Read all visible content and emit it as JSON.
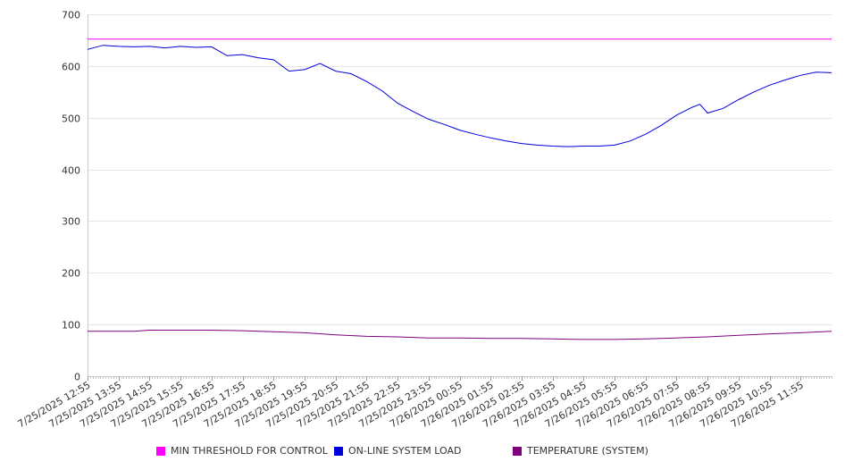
{
  "chart_data": {
    "type": "line",
    "title": "",
    "xlabel": "",
    "ylabel": "",
    "ylim": [
      0,
      700
    ],
    "yticks": [
      0,
      100,
      200,
      300,
      400,
      500,
      600,
      700
    ],
    "grid": "horizontal",
    "legend_position": "bottom",
    "x_tick_labels": [
      "7/25/2025 12:55",
      "7/25/2025 13:55",
      "7/25/2025 14:55",
      "7/25/2025 15:55",
      "7/25/2025 16:55",
      "7/25/2025 17:55",
      "7/25/2025 18:55",
      "7/25/2025 19:55",
      "7/25/2025 20:55",
      "7/25/2025 21:55",
      "7/25/2025 22:55",
      "7/25/2025 23:55",
      "7/26/2025 00:55",
      "7/26/2025 01:55",
      "7/26/2025 02:55",
      "7/26/2025 03:55",
      "7/26/2025 04:55",
      "7/26/2025 05:55",
      "7/26/2025 06:55",
      "7/26/2025 07:55",
      "7/26/2025 08:55",
      "7/26/2025 09:55",
      "7/26/2025 10:55",
      "7/26/2025 11:55"
    ],
    "series": [
      {
        "name": "MIN THRESHOLD FOR CONTROL",
        "color": "#ff00ff",
        "points": [
          [
            "7/25/2025 12:55",
            652
          ],
          [
            "7/26/2025 12:55",
            652
          ]
        ]
      },
      {
        "name": "ON-LINE SYSTEM LOAD",
        "color": "#0000dd",
        "points": [
          [
            "7/25/2025 12:55",
            632
          ],
          [
            "7/25/2025 13:25",
            640
          ],
          [
            "7/25/2025 13:55",
            638
          ],
          [
            "7/25/2025 14:25",
            637
          ],
          [
            "7/25/2025 14:55",
            638
          ],
          [
            "7/25/2025 15:25",
            635
          ],
          [
            "7/25/2025 15:55",
            638
          ],
          [
            "7/25/2025 16:25",
            636
          ],
          [
            "7/25/2025 16:55",
            637
          ],
          [
            "7/25/2025 17:25",
            620
          ],
          [
            "7/25/2025 17:55",
            622
          ],
          [
            "7/25/2025 18:25",
            616
          ],
          [
            "7/25/2025 18:55",
            612
          ],
          [
            "7/25/2025 19:25",
            590
          ],
          [
            "7/25/2025 19:55",
            593
          ],
          [
            "7/25/2025 20:25",
            605
          ],
          [
            "7/25/2025 20:55",
            590
          ],
          [
            "7/25/2025 21:25",
            585
          ],
          [
            "7/25/2025 21:55",
            570
          ],
          [
            "7/25/2025 22:25",
            552
          ],
          [
            "7/25/2025 22:55",
            528
          ],
          [
            "7/25/2025 23:25",
            512
          ],
          [
            "7/25/2025 23:55",
            497
          ],
          [
            "7/26/2025 00:25",
            487
          ],
          [
            "7/26/2025 00:55",
            476
          ],
          [
            "7/26/2025 01:25",
            468
          ],
          [
            "7/26/2025 01:55",
            461
          ],
          [
            "7/26/2025 02:25",
            455
          ],
          [
            "7/26/2025 02:55",
            450
          ],
          [
            "7/26/2025 03:25",
            447
          ],
          [
            "7/26/2025 03:55",
            445
          ],
          [
            "7/26/2025 04:25",
            444
          ],
          [
            "7/26/2025 04:55",
            445
          ],
          [
            "7/26/2025 05:25",
            445
          ],
          [
            "7/26/2025 05:55",
            447
          ],
          [
            "7/26/2025 06:25",
            455
          ],
          [
            "7/26/2025 06:55",
            468
          ],
          [
            "7/26/2025 07:25",
            485
          ],
          [
            "7/26/2025 07:55",
            505
          ],
          [
            "7/26/2025 08:25",
            520
          ],
          [
            "7/26/2025 08:40",
            526
          ],
          [
            "7/26/2025 08:55",
            509
          ],
          [
            "7/26/2025 09:25",
            518
          ],
          [
            "7/26/2025 09:55",
            535
          ],
          [
            "7/26/2025 10:25",
            550
          ],
          [
            "7/26/2025 10:55",
            563
          ],
          [
            "7/26/2025 11:25",
            573
          ],
          [
            "7/26/2025 11:55",
            582
          ],
          [
            "7/26/2025 12:25",
            588
          ],
          [
            "7/26/2025 12:55",
            587
          ]
        ]
      },
      {
        "name": "TEMPERATURE (SYSTEM)",
        "color": "#800080",
        "points": [
          [
            "7/25/2025 12:55",
            87
          ],
          [
            "7/25/2025 14:25",
            87
          ],
          [
            "7/25/2025 14:55",
            89
          ],
          [
            "7/25/2025 16:55",
            89
          ],
          [
            "7/25/2025 17:55",
            88
          ],
          [
            "7/25/2025 18:55",
            86
          ],
          [
            "7/25/2025 19:55",
            84
          ],
          [
            "7/25/2025 20:55",
            80
          ],
          [
            "7/25/2025 21:55",
            77
          ],
          [
            "7/25/2025 22:55",
            76
          ],
          [
            "7/25/2025 23:55",
            74
          ],
          [
            "7/26/2025 00:55",
            74
          ],
          [
            "7/26/2025 01:55",
            73
          ],
          [
            "7/26/2025 02:55",
            73
          ],
          [
            "7/26/2025 03:55",
            72
          ],
          [
            "7/26/2025 04:55",
            71
          ],
          [
            "7/26/2025 05:55",
            71
          ],
          [
            "7/26/2025 06:55",
            72
          ],
          [
            "7/26/2025 07:55",
            74
          ],
          [
            "7/26/2025 08:55",
            76
          ],
          [
            "7/26/2025 09:55",
            79
          ],
          [
            "7/26/2025 10:55",
            82
          ],
          [
            "7/26/2025 11:55",
            84
          ],
          [
            "7/26/2025 12:55",
            87
          ]
        ]
      }
    ]
  }
}
